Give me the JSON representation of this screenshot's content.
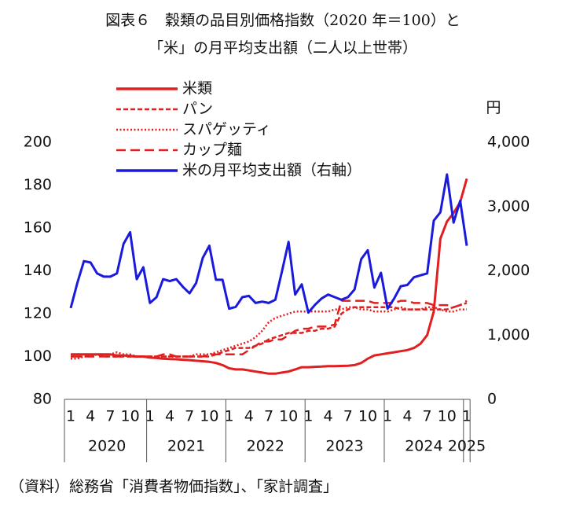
{
  "chart_data": {
    "type": "line",
    "title": "図表６　穀類の品目別価格指数（2020 年＝100）と",
    "subtitle": "「米」の月平均支出額（二人以上世帯）",
    "source": "（資料）総務省「消費者物価指数」、「家計調査」",
    "y2label": "円",
    "categories": [
      "1",
      null,
      null,
      "4",
      null,
      null,
      "7",
      null,
      null,
      "10",
      null,
      null,
      "1",
      null,
      null,
      "4",
      null,
      null,
      "7",
      null,
      null,
      "10",
      null,
      null,
      "1",
      null,
      null,
      "4",
      null,
      null,
      "7",
      null,
      null,
      "10",
      null,
      null,
      "1",
      null,
      null,
      "4",
      null,
      null,
      "7",
      null,
      null,
      "10",
      null,
      null,
      "1",
      null,
      null,
      "4",
      null,
      null,
      "7",
      null,
      null,
      "10",
      null,
      null,
      "1"
    ],
    "years": [
      "2020",
      "2021",
      "2022",
      "2023",
      "2024",
      "2025"
    ],
    "ylim": [
      80,
      200
    ],
    "yticks": [
      80,
      100,
      120,
      140,
      160,
      180,
      200
    ],
    "y2lim": [
      0,
      4000
    ],
    "y2ticks": [
      0,
      {
        "value": 1000,
        "label": "1,000"
      },
      {
        "value": 2000,
        "label": "2,000"
      },
      {
        "value": 3000,
        "label": "3,000"
      },
      {
        "value": 4000,
        "label": "4,000"
      }
    ],
    "series": [
      {
        "name": "米類",
        "color": "#e02020",
        "dash": "solid",
        "values": [
          101,
          101,
          101,
          101,
          101,
          101,
          101,
          100.5,
          100.5,
          100.3,
          100,
          100,
          99.5,
          99.3,
          99,
          98.8,
          98.7,
          98.5,
          98.3,
          98,
          97.8,
          97.5,
          97,
          96,
          94.5,
          94,
          94,
          93.5,
          93,
          92.5,
          92,
          92,
          92.5,
          93,
          94,
          95,
          95,
          95.2,
          95.3,
          95.5,
          95.5,
          95.6,
          95.7,
          96,
          97,
          99,
          100.5,
          101,
          101.5,
          102,
          102.5,
          103,
          104,
          106,
          110,
          121,
          155,
          163,
          167,
          172,
          183
        ]
      },
      {
        "name": "パン",
        "color": "#e02020",
        "dash": "dash",
        "values": [
          100,
          100,
          100,
          101,
          101,
          100,
          100,
          100,
          100,
          100,
          100,
          100,
          100,
          100,
          100,
          100,
          100,
          100,
          100,
          100,
          100,
          100,
          101,
          102,
          103,
          104,
          104,
          104,
          105,
          106,
          108,
          109,
          110,
          111,
          111,
          111,
          112,
          112,
          113,
          113,
          114,
          120,
          122,
          123,
          123,
          123,
          123,
          123,
          123,
          123,
          122,
          122,
          122,
          122,
          122,
          122,
          122,
          122,
          123,
          124,
          125
        ]
      },
      {
        "name": "スパゲッティ",
        "color": "#e02020",
        "dash": "dot",
        "values": [
          99,
          99,
          100,
          100,
          101,
          101,
          101,
          102,
          101,
          101,
          100,
          100,
          100,
          100,
          100,
          100,
          100,
          100,
          100,
          101,
          101,
          101,
          102,
          103,
          104,
          105,
          106,
          107,
          109,
          112,
          116,
          118,
          119,
          120,
          121,
          121,
          121,
          121,
          121,
          121,
          122,
          122,
          123,
          123,
          122,
          122,
          121,
          121,
          121,
          122,
          123,
          122,
          122,
          122,
          123,
          123,
          122,
          121,
          121,
          122,
          122
        ]
      },
      {
        "name": "カップ麺",
        "color": "#e02020",
        "dash": "longdash",
        "values": [
          100,
          100,
          100,
          100,
          100,
          100,
          100,
          100,
          100,
          100,
          100,
          100,
          100,
          100,
          101,
          101,
          100,
          100,
          100,
          100,
          100,
          101,
          101,
          101,
          101,
          101,
          101,
          103,
          105,
          107,
          107,
          108,
          108,
          110,
          112,
          113,
          113,
          114,
          114,
          114,
          115,
          126,
          126,
          126,
          126,
          126,
          125,
          125,
          125,
          125,
          126,
          126,
          125,
          125,
          125,
          124,
          124,
          124,
          123,
          124,
          126
        ]
      },
      {
        "name": "米の月平均支出額（右軸）",
        "color": "#1a1adc",
        "dash": "solid",
        "axis": "y2",
        "values": [
          1420,
          1810,
          2150,
          2130,
          1960,
          1910,
          1910,
          1960,
          2420,
          2600,
          1870,
          2055,
          1500,
          1590,
          1870,
          1840,
          1870,
          1750,
          1650,
          1810,
          2200,
          2390,
          1860,
          1860,
          1410,
          1440,
          1590,
          1610,
          1500,
          1520,
          1500,
          1550,
          1990,
          2450,
          1630,
          1790,
          1350,
          1470,
          1570,
          1630,
          1590,
          1550,
          1590,
          1710,
          2180,
          2320,
          1740,
          1970,
          1410,
          1570,
          1760,
          1780,
          1900,
          1930,
          1960,
          2780,
          2910,
          3500,
          2750,
          3090,
          2390
        ]
      }
    ]
  }
}
